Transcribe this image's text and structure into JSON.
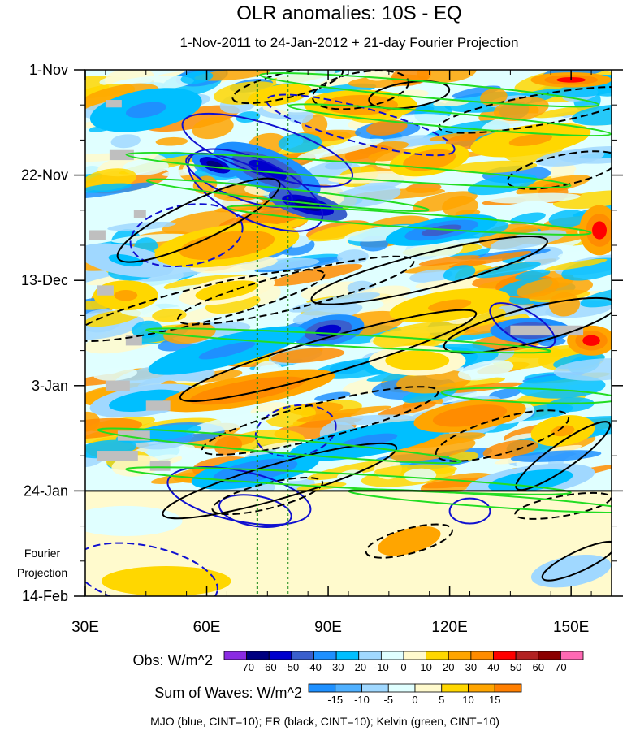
{
  "chart_data": {
    "type": "heatmap",
    "title": "OLR anomalies: 10S - EQ",
    "subtitle": "1-Nov-2011 to 24-Jan-2012 + 21-day Fourier Projection",
    "x_range_deg": [
      30,
      160
    ],
    "x_ticks": [
      {
        "value": 30,
        "label": "30E"
      },
      {
        "value": 60,
        "label": "60E"
      },
      {
        "value": 90,
        "label": "90E"
      },
      {
        "value": 120,
        "label": "120E"
      },
      {
        "value": 150,
        "label": "150E"
      }
    ],
    "y_range_days": [
      0,
      105
    ],
    "y_ticks": [
      {
        "value": 0,
        "label": "1-Nov"
      },
      {
        "value": 21,
        "label": "22-Nov"
      },
      {
        "value": 42,
        "label": "13-Dec"
      },
      {
        "value": 63,
        "label": "3-Jan"
      },
      {
        "value": 84,
        "label": "24-Jan"
      },
      {
        "value": 105,
        "label": "14-Feb"
      }
    ],
    "projection_start_day": 84,
    "projection_label_1": "Fourier",
    "projection_label_2": "Projection",
    "reference_longitudes": [
      72.5,
      80
    ],
    "obs_colorbar": {
      "label": "Obs: W/m^2",
      "levels": [
        "-70",
        "-60",
        "-50",
        "-40",
        "-30",
        "-20",
        "-10",
        "0",
        "10",
        "20",
        "30",
        "40",
        "50",
        "60",
        "70"
      ],
      "colors": [
        "#8a2be2",
        "#000080",
        "#0000cd",
        "#3a5fcd",
        "#1e90ff",
        "#00bfff",
        "#a0d8ff",
        "#e0ffff",
        "#fffacd",
        "#ffd700",
        "#ffa500",
        "#ff8c00",
        "#ff0000",
        "#b22222",
        "#8b0000",
        "#ff69b4"
      ]
    },
    "wave_colorbar": {
      "label": "Sum of Waves: W/m^2",
      "levels": [
        "-15",
        "-10",
        "-5",
        "0",
        "5",
        "10",
        "15"
      ],
      "colors": [
        "#1e90ff",
        "#4fb0ff",
        "#a0d8ff",
        "#e0ffff",
        "#fffacd",
        "#ffd700",
        "#ffa500",
        "#ff7f00"
      ]
    },
    "legend_note": "MJO (blue, CINT=10); ER (black, CINT=10); Kelvin (green, CINT=10)",
    "contours": {
      "mjo": {
        "color": "#1010d0",
        "ellipses": [
          {
            "cx": 75,
            "cy": 16,
            "rx": 22,
            "ry": 5,
            "rot": 18,
            "dash": false
          },
          {
            "cx": 72,
            "cy": 24,
            "rx": 18,
            "ry": 6,
            "rot": 25,
            "dash": false
          },
          {
            "cx": 68,
            "cy": 22,
            "rx": 14,
            "ry": 3.5,
            "rot": 22,
            "dash": false
          },
          {
            "cx": 55,
            "cy": 33,
            "rx": 14,
            "ry": 6,
            "rot": -10,
            "dash": true
          },
          {
            "cx": 98,
            "cy": 11,
            "rx": 24,
            "ry": 3.5,
            "rot": 15,
            "dash": true
          },
          {
            "cx": 138,
            "cy": 51,
            "rx": 9,
            "ry": 3,
            "rot": 30,
            "dash": false
          },
          {
            "cx": 82,
            "cy": 72,
            "rx": 10,
            "ry": 5,
            "rot": -10,
            "dash": true
          },
          {
            "cx": 68,
            "cy": 85,
            "rx": 18,
            "ry": 5,
            "rot": 12,
            "dash": false
          },
          {
            "cx": 72,
            "cy": 88,
            "rx": 9,
            "ry": 3,
            "rot": 10,
            "dash": false
          },
          {
            "cx": 125,
            "cy": 88,
            "rx": 5,
            "ry": 2.5,
            "rot": 0,
            "dash": false
          },
          {
            "cx": 45,
            "cy": 101,
            "rx": 18,
            "ry": 6,
            "rot": 12,
            "dash": true
          }
        ]
      },
      "er": {
        "color": "#000000",
        "ellipses": [
          {
            "cx": 80,
            "cy": 3,
            "rx": 14,
            "ry": 2.5,
            "rot": -14,
            "dash": true
          },
          {
            "cx": 98,
            "cy": 4,
            "rx": 12,
            "ry": 3.5,
            "rot": -10,
            "dash": true
          },
          {
            "cx": 142,
            "cy": 8,
            "rx": 25,
            "ry": 3,
            "rot": -10,
            "dash": true
          },
          {
            "cx": 148,
            "cy": 20,
            "rx": 14,
            "ry": 3,
            "rot": -12,
            "dash": true
          },
          {
            "cx": 110,
            "cy": 5,
            "rx": 10,
            "ry": 2.5,
            "rot": -8,
            "dash": false
          },
          {
            "cx": 58,
            "cy": 30,
            "rx": 22,
            "ry": 4,
            "rot": -25,
            "dash": false
          },
          {
            "cx": 82,
            "cy": 44,
            "rx": 30,
            "ry": 3.5,
            "rot": -14,
            "dash": true
          },
          {
            "cx": 58,
            "cy": 47,
            "rx": 32,
            "ry": 3.5,
            "rot": -14,
            "dash": true
          },
          {
            "cx": 115,
            "cy": 40,
            "rx": 30,
            "ry": 3.5,
            "rot": -14,
            "dash": false
          },
          {
            "cx": 90,
            "cy": 57,
            "rx": 38,
            "ry": 3.5,
            "rot": -16,
            "dash": false
          },
          {
            "cx": 140,
            "cy": 51,
            "rx": 22,
            "ry": 3.5,
            "rot": -14,
            "dash": false
          },
          {
            "cx": 88,
            "cy": 70,
            "rx": 30,
            "ry": 3.5,
            "rot": -14,
            "dash": true
          },
          {
            "cx": 78,
            "cy": 82,
            "rx": 30,
            "ry": 3.5,
            "rot": -16,
            "dash": false
          },
          {
            "cx": 75,
            "cy": 85,
            "rx": 14,
            "ry": 2.5,
            "rot": -14,
            "dash": true
          },
          {
            "cx": 133,
            "cy": 73,
            "rx": 17,
            "ry": 3.5,
            "rot": -16,
            "dash": true
          },
          {
            "cx": 148,
            "cy": 77,
            "rx": 14,
            "ry": 2.5,
            "rot": -35,
            "dash": false
          },
          {
            "cx": 148,
            "cy": 87,
            "rx": 12,
            "ry": 2,
            "rot": -10,
            "dash": true
          },
          {
            "cx": 110,
            "cy": 94,
            "rx": 11,
            "ry": 2.5,
            "rot": -15,
            "dash": true
          },
          {
            "cx": 152,
            "cy": 98,
            "rx": 10,
            "ry": 2,
            "rot": -25,
            "dash": false
          }
        ]
      },
      "kelvin": {
        "color": "#22dd22",
        "ellipses": [
          {
            "cx": 115,
            "cy": 4,
            "rx": 42,
            "ry": 1.6,
            "rot": 5,
            "dash": false
          },
          {
            "cx": 120,
            "cy": 10,
            "rx": 40,
            "ry": 1.4,
            "rot": 5,
            "dash": false
          },
          {
            "cx": 95,
            "cy": 20,
            "rx": 55,
            "ry": 1.6,
            "rot": 4,
            "dash": false
          },
          {
            "cx": 110,
            "cy": 30,
            "rx": 45,
            "ry": 1.4,
            "rot": 4,
            "dash": false
          },
          {
            "cx": 80,
            "cy": 25,
            "rx": 35,
            "ry": 1.2,
            "rot": 6,
            "dash": false
          },
          {
            "cx": 95,
            "cy": 54,
            "rx": 50,
            "ry": 1.2,
            "rot": 3,
            "dash": false
          },
          {
            "cx": 140,
            "cy": 65,
            "rx": 22,
            "ry": 1.4,
            "rot": 2,
            "dash": false
          },
          {
            "cx": 78,
            "cy": 75,
            "rx": 45,
            "ry": 1.4,
            "rot": 5,
            "dash": false
          },
          {
            "cx": 95,
            "cy": 82,
            "rx": 55,
            "ry": 1.4,
            "rot": 3,
            "dash": false
          },
          {
            "cx": 130,
            "cy": 86,
            "rx": 35,
            "ry": 1.2,
            "rot": 4,
            "dash": false
          }
        ]
      }
    },
    "anomaly_blobs": [
      {
        "x": 45,
        "y": 8,
        "rx": 14,
        "ry": 4,
        "rot": -10,
        "v": -35
      },
      {
        "x": 75,
        "y": 20,
        "rx": 14,
        "ry": 4,
        "rot": 22,
        "v": -60
      },
      {
        "x": 85,
        "y": 27,
        "rx": 10,
        "ry": 2.5,
        "rot": 15,
        "v": -70
      },
      {
        "x": 62,
        "y": 19,
        "rx": 6,
        "ry": 2,
        "rot": 20,
        "v": -65
      },
      {
        "x": 118,
        "y": 32,
        "rx": 14,
        "ry": 2.5,
        "rot": -10,
        "v": -45
      },
      {
        "x": 90,
        "y": 52,
        "rx": 9,
        "ry": 3,
        "rot": -10,
        "v": -55
      },
      {
        "x": 65,
        "y": 56,
        "rx": 20,
        "ry": 3,
        "rot": -14,
        "v": -35
      },
      {
        "x": 140,
        "y": 52,
        "rx": 10,
        "ry": 2.5,
        "rot": 0,
        "v": -60
      },
      {
        "x": 100,
        "y": 74,
        "rx": 20,
        "ry": 3,
        "rot": -10,
        "v": -35
      },
      {
        "x": 140,
        "y": 82,
        "rx": 16,
        "ry": 3,
        "rot": -8,
        "v": -30
      },
      {
        "x": 45,
        "y": 66,
        "rx": 14,
        "ry": 3,
        "rot": -8,
        "v": -30
      },
      {
        "x": 72,
        "y": 80,
        "rx": 16,
        "ry": 3,
        "rot": -10,
        "v": -40
      },
      {
        "x": 40,
        "y": 38,
        "rx": 12,
        "ry": 3,
        "rot": 10,
        "v": -25
      },
      {
        "x": 98,
        "y": 7,
        "rx": 14,
        "ry": 3,
        "rot": 0,
        "v": 30
      },
      {
        "x": 115,
        "y": 18,
        "rx": 10,
        "ry": 3,
        "rot": -10,
        "v": 30
      },
      {
        "x": 140,
        "y": 14,
        "rx": 15,
        "ry": 3,
        "rot": -8,
        "v": 25
      },
      {
        "x": 157,
        "y": 32,
        "rx": 5,
        "ry": 5,
        "rot": 0,
        "v": 45
      },
      {
        "x": 65,
        "y": 35,
        "rx": 18,
        "ry": 4,
        "rot": -8,
        "v": 30
      },
      {
        "x": 40,
        "y": 45,
        "rx": 8,
        "ry": 3,
        "rot": 0,
        "v": 25
      },
      {
        "x": 120,
        "y": 47,
        "rx": 15,
        "ry": 3,
        "rot": -8,
        "v": 25
      },
      {
        "x": 155,
        "y": 54,
        "rx": 6,
        "ry": 3,
        "rot": 0,
        "v": 45
      },
      {
        "x": 70,
        "y": 64,
        "rx": 22,
        "ry": 3,
        "rot": -10,
        "v": 40
      },
      {
        "x": 125,
        "y": 69,
        "rx": 14,
        "ry": 3,
        "rot": -8,
        "v": 40
      },
      {
        "x": 148,
        "y": 72,
        "rx": 8,
        "ry": 3,
        "rot": -8,
        "v": 25
      },
      {
        "x": 78,
        "y": 5,
        "rx": 8,
        "ry": 2,
        "rot": -10,
        "v": 20
      },
      {
        "x": 112,
        "y": 58,
        "rx": 12,
        "ry": 3,
        "rot": 0,
        "v": 15
      },
      {
        "x": 65,
        "y": 44,
        "rx": 12,
        "ry": 2.5,
        "rot": -10,
        "v": 15
      },
      {
        "x": 150,
        "y": 2,
        "rx": 10,
        "ry": 1.5,
        "rot": 0,
        "v": 45
      }
    ],
    "projection_blobs": [
      {
        "x": 40,
        "y": 90,
        "rx": 14,
        "ry": 3,
        "rot": 0,
        "v": -5
      },
      {
        "x": 110,
        "y": 94,
        "rx": 8,
        "ry": 2.5,
        "rot": -15,
        "v": 10
      },
      {
        "x": 150,
        "y": 100,
        "rx": 10,
        "ry": 3,
        "rot": -10,
        "v": -8
      },
      {
        "x": 50,
        "y": 102,
        "rx": 16,
        "ry": 3,
        "rot": 0,
        "v": 6
      }
    ],
    "missing_boxes": [
      {
        "x": 35,
        "y": 6,
        "w": 4,
        "h": 1.5
      },
      {
        "x": 36,
        "y": 16,
        "w": 6,
        "h": 2
      },
      {
        "x": 42,
        "y": 28,
        "w": 3,
        "h": 1.5
      },
      {
        "x": 31,
        "y": 32,
        "w": 4,
        "h": 2
      },
      {
        "x": 33,
        "y": 43,
        "w": 4,
        "h": 2
      },
      {
        "x": 40,
        "y": 53,
        "w": 4,
        "h": 2
      },
      {
        "x": 35,
        "y": 62,
        "w": 6,
        "h": 2
      },
      {
        "x": 45,
        "y": 66,
        "w": 6,
        "h": 2
      },
      {
        "x": 38,
        "y": 72,
        "w": 8,
        "h": 2
      },
      {
        "x": 33,
        "y": 76,
        "w": 10,
        "h": 2
      },
      {
        "x": 46,
        "y": 78,
        "w": 5,
        "h": 2
      },
      {
        "x": 135,
        "y": 51,
        "w": 18,
        "h": 2
      }
    ]
  }
}
